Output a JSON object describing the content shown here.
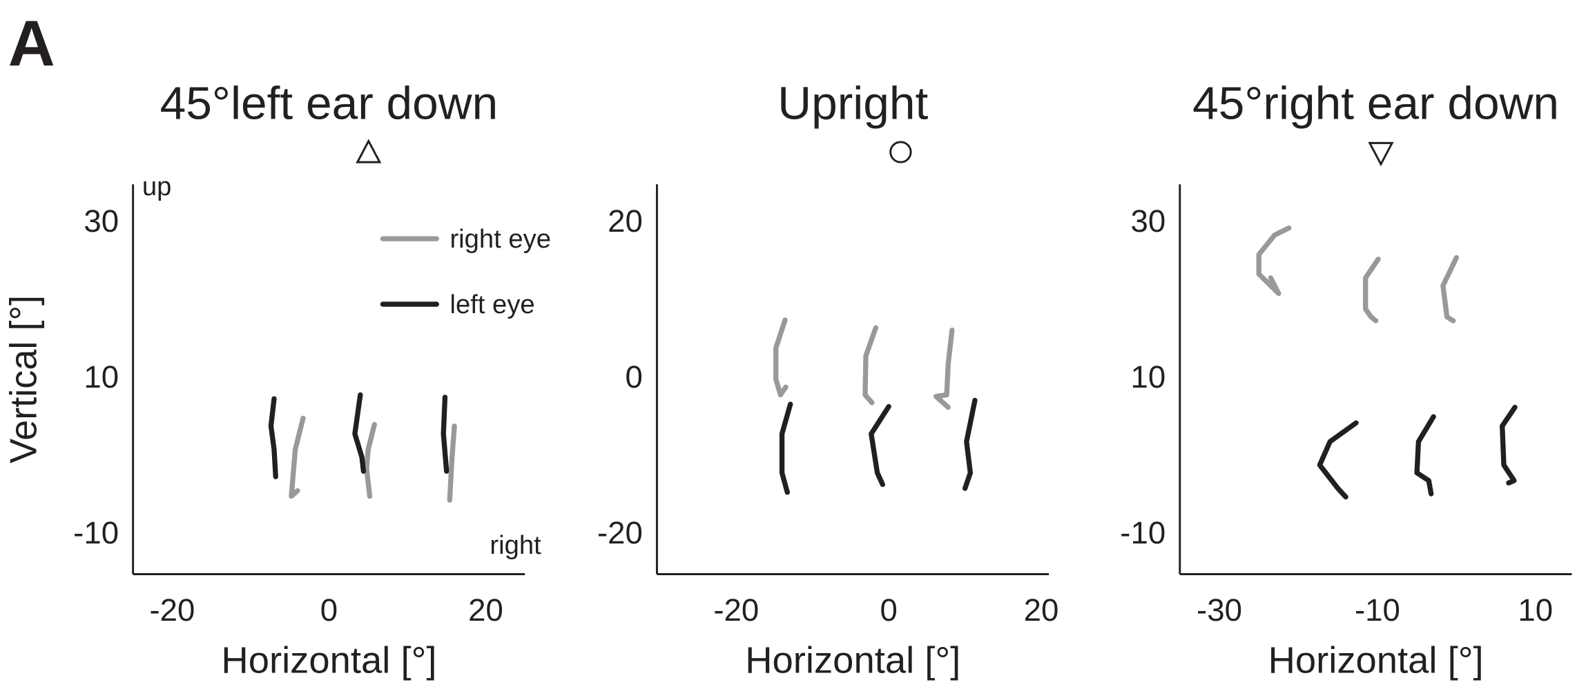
{
  "figure_label": "A",
  "chart_data": [
    {
      "type": "line",
      "title": "45°left ear down",
      "xlabel": "Horizontal [°]",
      "ylabel": "Vertical [°]",
      "annotations": [
        "up",
        "right"
      ],
      "legend": "upper right",
      "xlim": [
        -25,
        25
      ],
      "xticks": [
        -20,
        0,
        20
      ],
      "ylim": [
        -15,
        35
      ],
      "yticks": [
        -10,
        10,
        30
      ],
      "series": [
        {
          "name": "right eye",
          "color": "#999999",
          "x": [
            -3.3,
            -4.3,
            -4.8,
            -4.0,
            null,
            5.8,
            5.0,
            4.8,
            5.2,
            null,
            16.0,
            15.7,
            15.4
          ],
          "values": [
            5.0,
            1.0,
            -5.0,
            -4.3,
            null,
            4.2,
            1.0,
            -1.5,
            -5.0,
            null,
            4.0,
            0.0,
            -5.5
          ]
        },
        {
          "name": "left eye",
          "color": "#231f20",
          "x": [
            -7.0,
            -7.4,
            -7.0,
            -6.8,
            null,
            4.0,
            3.3,
            4.2,
            4.4,
            null,
            14.8,
            14.6,
            15.0
          ],
          "values": [
            7.5,
            4.0,
            1.0,
            -2.5,
            null,
            8.0,
            3.0,
            0.0,
            -1.8,
            null,
            7.7,
            3.0,
            -1.8
          ]
        }
      ]
    },
    {
      "type": "line",
      "title": "Upright",
      "xlabel": "Horizontal [°]",
      "xlim": [
        -30.4,
        21
      ],
      "xticks": [
        -20,
        0,
        20
      ],
      "ylim": [
        -25,
        25
      ],
      "yticks": [
        -20,
        0,
        20
      ],
      "series": [
        {
          "color": "#999999",
          "x": [
            -13.6,
            -14.8,
            -14.8,
            -14.2,
            -13.5,
            null,
            -1.7,
            -3.0,
            -3.1,
            -2.2,
            null,
            8.3,
            7.8,
            7.6,
            6.2,
            7.8
          ],
          "values": [
            7.6,
            4.0,
            0.0,
            -2.0,
            -1.0,
            null,
            6.6,
            3.0,
            -2.0,
            -3.0,
            null,
            6.3,
            2.0,
            -2.0,
            -2.2,
            -3.6
          ]
        },
        {
          "color": "#231f20",
          "x": [
            -12.9,
            -14.0,
            -14.0,
            -13.3,
            null,
            0.0,
            -2.3,
            -1.5,
            -0.8,
            null,
            11.3,
            10.2,
            10.7,
            10.0
          ],
          "values": [
            -3.2,
            -7.0,
            -12.0,
            -14.5,
            null,
            -3.5,
            -7.0,
            -12.0,
            -13.5,
            null,
            -2.7,
            -8.0,
            -12.0,
            -14.0
          ]
        }
      ]
    },
    {
      "type": "line",
      "title": "45°right ear down",
      "xlabel": "Horizontal [°]",
      "xlim": [
        -35,
        14.6
      ],
      "xticks": [
        -30,
        -10,
        10
      ],
      "ylim": [
        -15,
        35
      ],
      "yticks": [
        -10,
        10,
        30
      ],
      "series": [
        {
          "color": "#999999",
          "x": [
            -21.2,
            -23.0,
            -25.0,
            -25.0,
            -23.0,
            -22.5,
            -23.5,
            null,
            -9.9,
            -11.5,
            -11.5,
            -10.8,
            -10.2,
            null,
            0.0,
            -1.7,
            -1.2,
            -0.4
          ],
          "values": [
            29.4,
            28.5,
            26.0,
            23.5,
            21.5,
            21.0,
            23.0,
            null,
            25.4,
            23.0,
            19.0,
            18.0,
            17.5,
            null,
            25.6,
            22.0,
            18.0,
            17.5
          ]
        },
        {
          "color": "#231f20",
          "x": [
            -12.7,
            -16.0,
            -17.3,
            -15.0,
            -14.0,
            null,
            -2.9,
            -4.8,
            -5.0,
            -3.5,
            -3.2,
            null,
            7.4,
            5.8,
            6.0,
            7.3,
            6.6
          ],
          "values": [
            4.4,
            2.0,
            -1.0,
            -4.0,
            -5.1,
            null,
            5.2,
            2.0,
            -2.0,
            -3.0,
            -4.7,
            null,
            6.4,
            4.0,
            -1.0,
            -3.0,
            -3.3
          ]
        }
      ]
    }
  ]
}
